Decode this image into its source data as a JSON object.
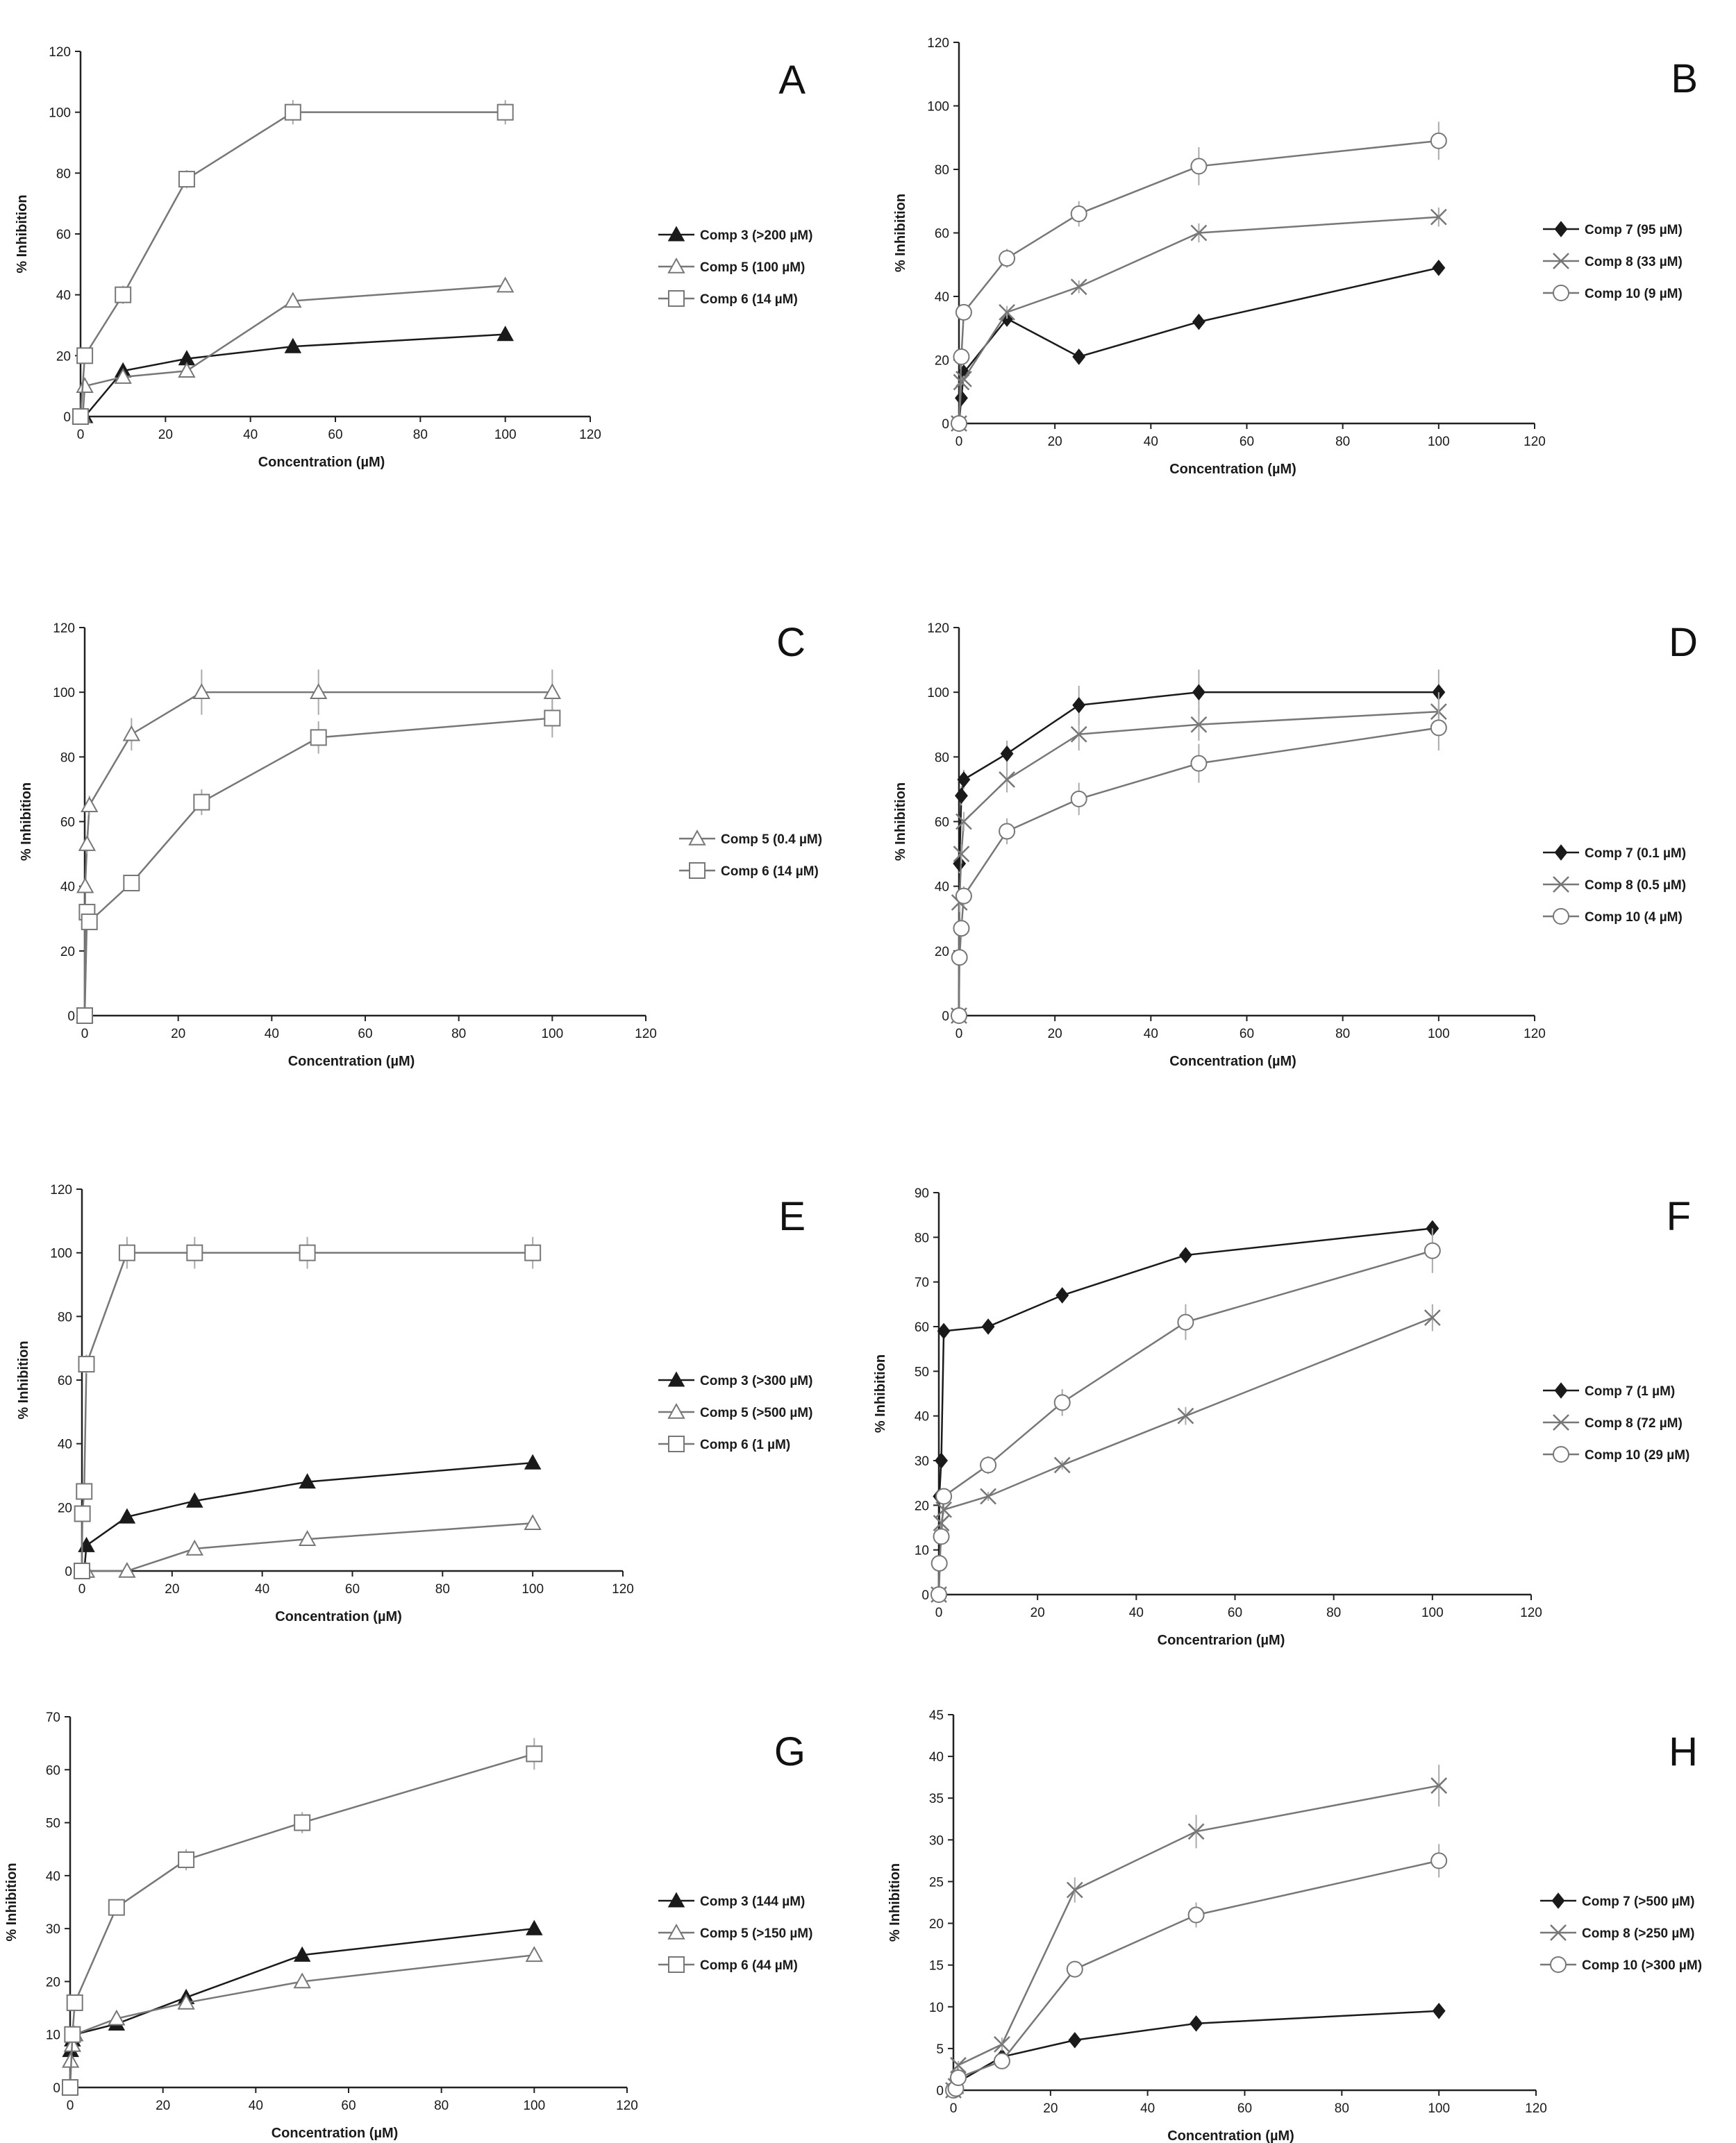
{
  "chart_data": [
    {
      "panel": "A",
      "type": "line",
      "xlabel": "Concentration (µM)",
      "ylabel": "% Inhibition",
      "xlim": [
        0,
        120
      ],
      "ylim": [
        0,
        120
      ],
      "xticks": [
        0,
        20,
        40,
        60,
        80,
        100,
        120
      ],
      "yticks": [
        0,
        20,
        40,
        60,
        80,
        100,
        120
      ],
      "series": [
        {
          "name": "Comp 3 (>200 µM)",
          "marker": "triangle-filled",
          "color": "#1a1a1a",
          "x": [
            0,
            0.5,
            1,
            10,
            25,
            50,
            100
          ],
          "y": [
            0,
            0,
            0,
            15,
            19,
            23,
            27
          ],
          "err": [
            0,
            0,
            0,
            1,
            1,
            1,
            1
          ]
        },
        {
          "name": "Comp 5 (100 µM)",
          "marker": "triangle-open",
          "color": "#777777",
          "x": [
            0,
            0.5,
            1,
            10,
            25,
            50,
            100
          ],
          "y": [
            0,
            0,
            10,
            13,
            15,
            38,
            43
          ],
          "err": [
            0,
            0,
            1,
            1,
            1,
            2,
            2
          ]
        },
        {
          "name": "Comp 6 (14 µM)",
          "marker": "square-open",
          "color": "#777777",
          "x": [
            0,
            1,
            10,
            25,
            50,
            100
          ],
          "y": [
            0,
            20,
            40,
            78,
            100,
            100
          ],
          "err": [
            0,
            2,
            3,
            3,
            4,
            4
          ]
        }
      ]
    },
    {
      "panel": "B",
      "type": "line",
      "xlabel": "Concentration (µM)",
      "ylabel": "% Inhibition",
      "xlim": [
        0,
        120
      ],
      "ylim": [
        0,
        120
      ],
      "xticks": [
        0,
        20,
        40,
        60,
        80,
        100,
        120
      ],
      "yticks": [
        0,
        20,
        40,
        60,
        80,
        100,
        120
      ],
      "series": [
        {
          "name": "Comp 7 (95 µM)",
          "marker": "diamond-filled",
          "color": "#1a1a1a",
          "x": [
            0,
            0.5,
            1,
            10,
            25,
            50,
            100
          ],
          "y": [
            0,
            8,
            16,
            33,
            21,
            32,
            49
          ],
          "err": [
            0,
            1,
            1,
            1,
            1,
            1,
            1
          ]
        },
        {
          "name": "Comp 8 (33 µM)",
          "marker": "x",
          "color": "#777777",
          "x": [
            0,
            0.5,
            1,
            10,
            25,
            50,
            100
          ],
          "y": [
            0,
            13,
            14,
            35,
            43,
            60,
            65
          ],
          "err": [
            0,
            1,
            1,
            2,
            2,
            3,
            3
          ]
        },
        {
          "name": "Comp 10 (9 µM)",
          "marker": "circle-open",
          "color": "#777777",
          "x": [
            0,
            0.5,
            1,
            10,
            25,
            50,
            100
          ],
          "y": [
            0,
            21,
            35,
            52,
            66,
            81,
            89
          ],
          "err": [
            0,
            2,
            2,
            3,
            4,
            6,
            6
          ]
        }
      ]
    },
    {
      "panel": "C",
      "type": "line",
      "xlabel": "Concentration (µM)",
      "ylabel": "% Inhibition",
      "xlim": [
        0,
        120
      ],
      "ylim": [
        0,
        120
      ],
      "xticks": [
        0,
        20,
        40,
        60,
        80,
        100,
        120
      ],
      "yticks": [
        0,
        20,
        40,
        60,
        80,
        100,
        120
      ],
      "series": [
        {
          "name": "Comp 5 (0.4 µM)",
          "marker": "triangle-open",
          "color": "#777777",
          "x": [
            0,
            0.1,
            0.5,
            1,
            10,
            25,
            50,
            100
          ],
          "y": [
            0,
            40,
            53,
            65,
            87,
            100,
            100,
            100
          ],
          "err": [
            0,
            2,
            3,
            3,
            5,
            7,
            7,
            7
          ]
        },
        {
          "name": "Comp 6 (14 µM)",
          "marker": "square-open",
          "color": "#777777",
          "x": [
            0,
            0.5,
            1,
            10,
            25,
            50,
            100
          ],
          "y": [
            0,
            32,
            29,
            41,
            66,
            86,
            92
          ],
          "err": [
            0,
            2,
            2,
            2,
            4,
            5,
            6
          ]
        }
      ]
    },
    {
      "panel": "D",
      "type": "line",
      "xlabel": "Concentration (µM)",
      "ylabel": "% Inhibition",
      "xlim": [
        0,
        120
      ],
      "ylim": [
        0,
        120
      ],
      "xticks": [
        0,
        20,
        40,
        60,
        80,
        100,
        120
      ],
      "yticks": [
        0,
        20,
        40,
        60,
        80,
        100,
        120
      ],
      "series": [
        {
          "name": "Comp 7 (0.1 µM)",
          "marker": "diamond-filled",
          "color": "#1a1a1a",
          "x": [
            0,
            0.1,
            0.5,
            1,
            10,
            25,
            50,
            100
          ],
          "y": [
            0,
            47,
            68,
            73,
            81,
            96,
            100,
            100
          ],
          "err": [
            0,
            3,
            3,
            3,
            4,
            6,
            7,
            7
          ]
        },
        {
          "name": "Comp 8 (0.5 µM)",
          "marker": "x",
          "color": "#777777",
          "x": [
            0,
            0.1,
            0.5,
            1,
            10,
            25,
            50,
            100
          ],
          "y": [
            0,
            35,
            50,
            60,
            73,
            87,
            90,
            94
          ],
          "err": [
            0,
            3,
            3,
            3,
            4,
            5,
            5,
            6
          ]
        },
        {
          "name": "Comp 10 (4 µM)",
          "marker": "circle-open",
          "color": "#777777",
          "x": [
            0,
            0.1,
            0.5,
            1,
            10,
            25,
            50,
            100
          ],
          "y": [
            0,
            18,
            27,
            37,
            57,
            67,
            78,
            89
          ],
          "err": [
            0,
            2,
            3,
            3,
            4,
            5,
            6,
            7
          ]
        }
      ]
    },
    {
      "panel": "E",
      "type": "line",
      "xlabel": "Concentration (µM)",
      "ylabel": "% Inhibition",
      "xlim": [
        0,
        120
      ],
      "ylim": [
        0,
        120
      ],
      "xticks": [
        0,
        20,
        40,
        60,
        80,
        100,
        120
      ],
      "yticks": [
        0,
        20,
        40,
        60,
        80,
        100,
        120
      ],
      "series": [
        {
          "name": "Comp 3 (>300 µM)",
          "marker": "triangle-filled",
          "color": "#1a1a1a",
          "x": [
            0,
            0.5,
            1,
            10,
            25,
            50,
            100
          ],
          "y": [
            0,
            0,
            8,
            17,
            22,
            28,
            34
          ],
          "err": [
            0,
            0,
            1,
            1,
            1,
            1,
            1
          ]
        },
        {
          "name": "Comp 5 (>500 µM)",
          "marker": "triangle-open",
          "color": "#777777",
          "x": [
            0,
            0.5,
            1,
            10,
            25,
            50,
            100
          ],
          "y": [
            0,
            0,
            0,
            0,
            7,
            10,
            15
          ],
          "err": [
            0,
            0,
            0,
            1,
            1,
            1,
            1
          ]
        },
        {
          "name": "Comp 6 (1 µM)",
          "marker": "square-open",
          "color": "#777777",
          "x": [
            0,
            0.1,
            0.5,
            1,
            10,
            25,
            50,
            100
          ],
          "y": [
            0,
            18,
            25,
            65,
            100,
            100,
            100,
            100
          ],
          "err": [
            0,
            2,
            2,
            3,
            5,
            5,
            5,
            5
          ]
        }
      ]
    },
    {
      "panel": "F",
      "type": "line",
      "xlabel": "Concentrarion (µM)",
      "ylabel": "% Inhibition",
      "xlim": [
        0,
        120
      ],
      "ylim": [
        0,
        90
      ],
      "xticks": [
        0,
        20,
        40,
        60,
        80,
        100,
        120
      ],
      "yticks": [
        0,
        10,
        20,
        30,
        40,
        50,
        60,
        70,
        80,
        90
      ],
      "series": [
        {
          "name": "Comp 7 (1 µM)",
          "marker": "diamond-filled",
          "color": "#1a1a1a",
          "x": [
            0,
            0.1,
            0.5,
            1,
            10,
            25,
            50,
            100
          ],
          "y": [
            0,
            22,
            30,
            59,
            60,
            67,
            76,
            82
          ],
          "err": [
            0,
            1,
            1,
            1,
            1,
            1,
            1,
            1
          ]
        },
        {
          "name": "Comp 8 (72 µM)",
          "marker": "x",
          "color": "#777777",
          "x": [
            0,
            0.5,
            1,
            10,
            25,
            50,
            100
          ],
          "y": [
            0,
            16,
            19,
            22,
            29,
            40,
            62
          ],
          "err": [
            0,
            1,
            1,
            1,
            1,
            2,
            3
          ]
        },
        {
          "name": "Comp 10 (29 µM)",
          "marker": "circle-open",
          "color": "#777777",
          "x": [
            0,
            0.1,
            0.5,
            1,
            10,
            25,
            50,
            100
          ],
          "y": [
            0,
            7,
            13,
            22,
            29,
            43,
            61,
            77
          ],
          "err": [
            0,
            1,
            1,
            1,
            2,
            3,
            4,
            5
          ]
        }
      ]
    },
    {
      "panel": "G",
      "type": "line",
      "xlabel": "Concentration (µM)",
      "ylabel": "% Inhibition",
      "xlim": [
        0,
        120
      ],
      "ylim": [
        0,
        70
      ],
      "xticks": [
        0,
        20,
        40,
        60,
        80,
        100,
        120
      ],
      "yticks": [
        0,
        10,
        20,
        30,
        40,
        50,
        60,
        70
      ],
      "series": [
        {
          "name": "Comp 3 (144 µM)",
          "marker": "triangle-filled",
          "color": "#1a1a1a",
          "x": [
            0,
            0.1,
            0.5,
            1,
            10,
            25,
            50,
            100
          ],
          "y": [
            0,
            7,
            9,
            10,
            12,
            17,
            25,
            30
          ],
          "err": [
            0,
            1,
            1,
            1,
            1,
            1,
            1,
            1
          ]
        },
        {
          "name": "Comp 5 (>150 µM)",
          "marker": "triangle-open",
          "color": "#777777",
          "x": [
            0,
            0.1,
            0.5,
            1,
            10,
            25,
            50,
            100
          ],
          "y": [
            0,
            5,
            8,
            10,
            13,
            16,
            20,
            25
          ],
          "err": [
            0,
            1,
            1,
            1,
            1,
            1,
            1,
            1
          ]
        },
        {
          "name": "Comp 6 (44 µM)",
          "marker": "square-open",
          "color": "#777777",
          "x": [
            0,
            0.5,
            1,
            10,
            25,
            50,
            100
          ],
          "y": [
            0,
            10,
            16,
            34,
            43,
            50,
            63
          ],
          "err": [
            0,
            1,
            1,
            1,
            2,
            2,
            3
          ]
        }
      ]
    },
    {
      "panel": "H",
      "type": "line",
      "xlabel": "Concentration (µM)",
      "ylabel": "% Inhibition",
      "xlim": [
        0,
        120
      ],
      "ylim": [
        0,
        45
      ],
      "xticks": [
        0,
        20,
        40,
        60,
        80,
        100,
        120
      ],
      "yticks": [
        0,
        5,
        10,
        15,
        20,
        25,
        30,
        35,
        40,
        45
      ],
      "series": [
        {
          "name": "Comp 7 (>500 µM)",
          "marker": "diamond-filled",
          "color": "#1a1a1a",
          "x": [
            0,
            0.5,
            1,
            10,
            25,
            50,
            100
          ],
          "y": [
            0,
            0,
            1,
            4,
            6,
            8,
            9.5
          ],
          "err": [
            0,
            0,
            0.3,
            0.3,
            0.3,
            0.3,
            0.3
          ]
        },
        {
          "name": "Comp 8 (>250 µM)",
          "marker": "x",
          "color": "#777777",
          "x": [
            0,
            0.5,
            1,
            10,
            25,
            50,
            100
          ],
          "y": [
            0,
            0.5,
            3,
            5.5,
            24,
            31,
            36.5
          ],
          "err": [
            0,
            0.3,
            0.5,
            0.8,
            1.5,
            2,
            2.5
          ]
        },
        {
          "name": "Comp 10 (>300 µM)",
          "marker": "circle-open",
          "color": "#777777",
          "x": [
            0,
            0.5,
            1,
            10,
            25,
            50,
            100
          ],
          "y": [
            0,
            0.2,
            1.5,
            3.5,
            14.5,
            21,
            27.5
          ],
          "err": [
            0,
            0.3,
            0.5,
            0.8,
            1,
            1.5,
            2
          ]
        }
      ]
    }
  ]
}
